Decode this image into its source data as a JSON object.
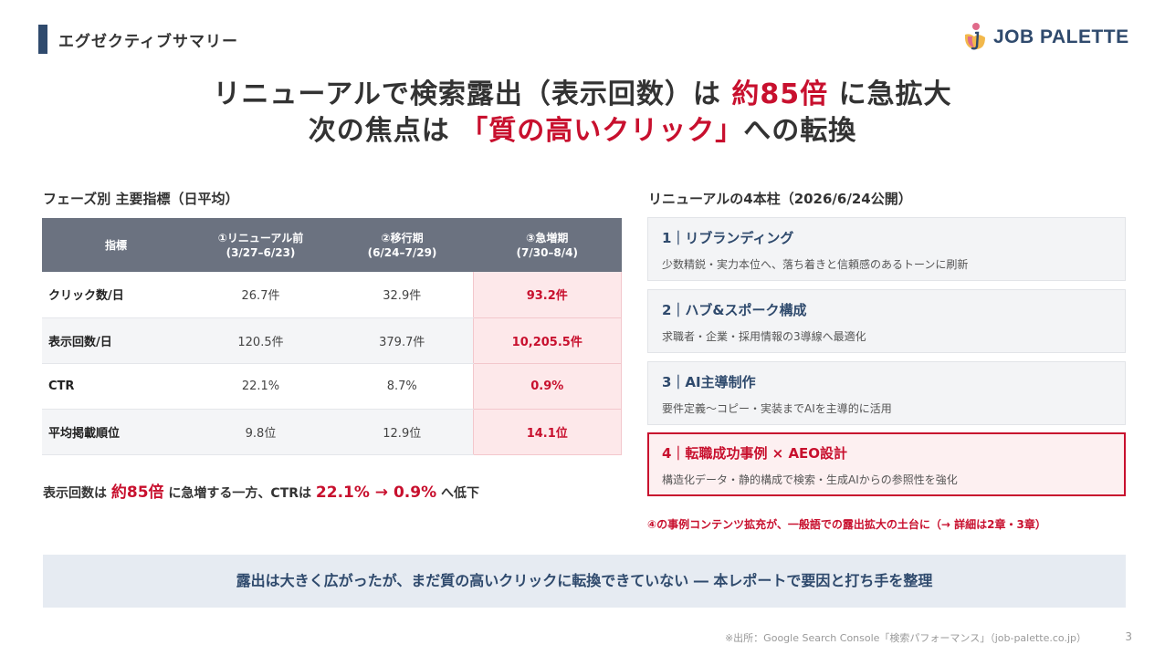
{
  "header": {
    "section_title": "エグゼクティブサマリー",
    "logo_text": "JOB PALETTE"
  },
  "headline": {
    "line1_pre": "リニューアルで検索露出（表示回数）は ",
    "line1_accent": "約85倍",
    "line1_post": " に急拡大",
    "line2_pre": "次の焦点は ",
    "line2_accent": "「質の高いクリック」",
    "line2_post": "への転換"
  },
  "left": {
    "subtitle": "フェーズ別 主要指標（日平均）",
    "table": {
      "headers": [
        {
          "line1": "指標",
          "line2": ""
        },
        {
          "line1": "①リニューアル前",
          "line2": "(3/27–6/23)"
        },
        {
          "line1": "②移行期",
          "line2": "(6/24–7/29)"
        },
        {
          "line1": "③急増期",
          "line2": "(7/30–8/4)"
        }
      ],
      "rows": [
        {
          "metric": "クリック数/日",
          "v1": "26.7件",
          "v2": "32.9件",
          "v3": "93.2件"
        },
        {
          "metric": "表示回数/日",
          "v1": "120.5件",
          "v2": "379.7件",
          "v3": "10,205.5件"
        },
        {
          "metric": "CTR",
          "v1": "22.1%",
          "v2": "8.7%",
          "v3": "0.9%"
        },
        {
          "metric": "平均掲載順位",
          "v1": "9.8位",
          "v2": "12.9位",
          "v3": "14.1位"
        }
      ]
    },
    "note": {
      "t1": "表示回数は ",
      "a1": "約85倍",
      "t2": " に急増する一方、CTRは ",
      "a2": "22.1% → 0.9%",
      "t3": " へ低下"
    }
  },
  "right": {
    "subtitle": "リニューアルの4本柱（2026/6/24公開）",
    "pillars": [
      {
        "title": "1｜リブランディング",
        "desc": "少数精鋭・実力本位へ、落ち着きと信頼感のあるトーンに刷新"
      },
      {
        "title": "2｜ハブ&スポーク構成",
        "desc": "求職者・企業・採用情報の3導線へ最適化"
      },
      {
        "title": "3｜AI主導制作",
        "desc": "要件定義〜コピー・実装までAIを主導的に活用"
      },
      {
        "title": "4｜転職成功事例 × AEO設計",
        "desc": "構造化データ・静的構成で検索・生成AIからの参照性を強化"
      }
    ],
    "note": "④の事例コンテンツ拡充が、一般語での露出拡大の土台に（→ 詳細は2章・3章）"
  },
  "banner": "露出は大きく広がったが、まだ質の高いクリックに転換できていない ― 本レポートで要因と打ち手を整理",
  "footer": {
    "source": "※出所：Google Search Console「検索パフォーマンス」（job-palette.co.jp）",
    "page": "3"
  },
  "colors": {
    "navy": "#2f4a6d",
    "accent_red": "#c8102e",
    "table_header": "#6b7280",
    "highlight_bg": "#fde8ea"
  }
}
